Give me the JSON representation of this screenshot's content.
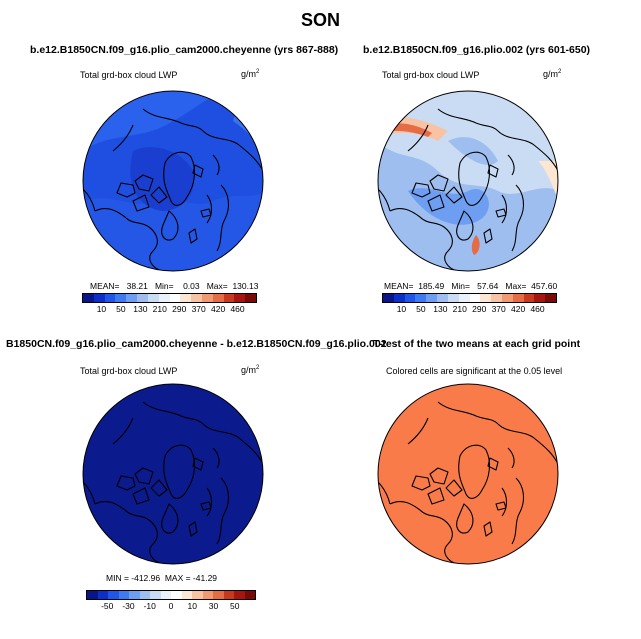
{
  "title": "SON",
  "colors": {
    "scale": [
      "#08168a",
      "#0c2fc8",
      "#1f55e8",
      "#3e7bf0",
      "#6d9ef2",
      "#9ebef0",
      "#c9dcf4",
      "#eaf1fb",
      "#ffffff",
      "#fde6d2",
      "#f7c3a2",
      "#f19a72",
      "#e56c45",
      "#c9391e",
      "#a51610",
      "#7a0a0a"
    ]
  },
  "panels": [
    {
      "title": "b.e12.B1850CN.f09_g16.plio_cam2000.cheyenne (yrs 867-888)",
      "subtitle": "Total grd-box cloud LWP",
      "units": "g/m",
      "units_sup": "2",
      "stats": "MEAN=   38.21   Min=    0.03   Max=  130.13",
      "colorbar_ticks": [
        "10",
        "50",
        "130",
        "210",
        "290",
        "370",
        "420",
        "460"
      ]
    },
    {
      "title": "b.e12.B1850CN.f09_g16.plio.002 (yrs 601-650)",
      "subtitle": "Total grd-box cloud LWP",
      "units": "g/m",
      "units_sup": "2",
      "stats": "MEAN=  185.49   Min=   57.64   Max=  457.60",
      "colorbar_ticks": [
        "10",
        "50",
        "130",
        "210",
        "290",
        "370",
        "420",
        "460"
      ]
    },
    {
      "title": "B1850CN.f09_g16.plio_cam2000.cheyenne - b.e12.B1850CN.f09_g16.plio.002",
      "subtitle": "Total grd-box cloud LWP",
      "units": "g/m",
      "units_sup": "2",
      "stats": "MIN = -412.96  MAX = -41.29",
      "colorbar_ticks": [
        "-50",
        "-30",
        "-10",
        "0",
        "10",
        "30",
        "50"
      ]
    },
    {
      "title": "T-test of the two means at each grid point",
      "subtitle": "Colored cells are significant at the 0.05 level"
    }
  ]
}
